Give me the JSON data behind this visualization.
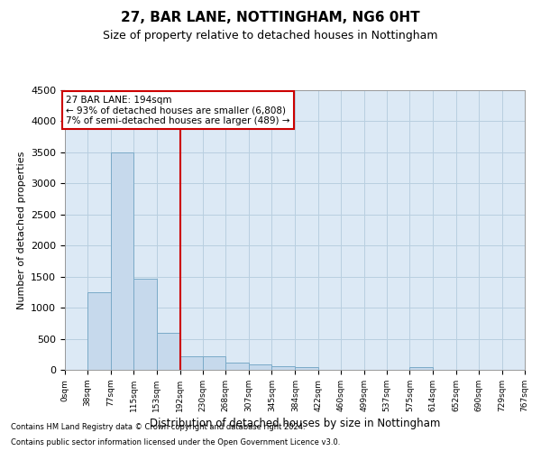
{
  "title1": "27, BAR LANE, NOTTINGHAM, NG6 0HT",
  "title2": "Size of property relative to detached houses in Nottingham",
  "xlabel": "Distribution of detached houses by size in Nottingham",
  "ylabel": "Number of detached properties",
  "footnote1": "Contains HM Land Registry data © Crown copyright and database right 2024.",
  "footnote2": "Contains public sector information licensed under the Open Government Licence v3.0.",
  "property_label": "27 BAR LANE: 194sqm",
  "annotation_line1": "← 93% of detached houses are smaller (6,808)",
  "annotation_line2": "7% of semi-detached houses are larger (489) →",
  "red_line_x": 192,
  "bar_color": "#c6d9ec",
  "bar_edge_color": "#7aaac8",
  "red_line_color": "#cc0000",
  "annotation_box_color": "#ffffff",
  "annotation_box_edge": "#cc0000",
  "ax_bg_color": "#dce9f5",
  "grid_color": "#b8cfe0",
  "bin_edges": [
    0,
    38,
    77,
    115,
    153,
    192,
    230,
    268,
    307,
    345,
    384,
    422,
    460,
    499,
    537,
    575,
    614,
    652,
    690,
    729,
    767
  ],
  "bin_labels": [
    "0sqm",
    "38sqm",
    "77sqm",
    "115sqm",
    "153sqm",
    "192sqm",
    "230sqm",
    "268sqm",
    "307sqm",
    "345sqm",
    "384sqm",
    "422sqm",
    "460sqm",
    "499sqm",
    "537sqm",
    "575sqm",
    "614sqm",
    "652sqm",
    "690sqm",
    "729sqm",
    "767sqm"
  ],
  "counts": [
    5,
    1250,
    3500,
    1470,
    590,
    220,
    215,
    115,
    80,
    60,
    50,
    0,
    0,
    0,
    0,
    50,
    0,
    0,
    0,
    0
  ],
  "ylim": [
    0,
    4500
  ],
  "yticks": [
    0,
    500,
    1000,
    1500,
    2000,
    2500,
    3000,
    3500,
    4000,
    4500
  ],
  "background_color": "#ffffff",
  "title1_fontsize": 11,
  "title2_fontsize": 9,
  "ylabel_fontsize": 8,
  "xlabel_fontsize": 8.5,
  "ytick_fontsize": 8,
  "xtick_fontsize": 6.5,
  "footnote_fontsize": 6,
  "ann_fontsize": 7.5
}
